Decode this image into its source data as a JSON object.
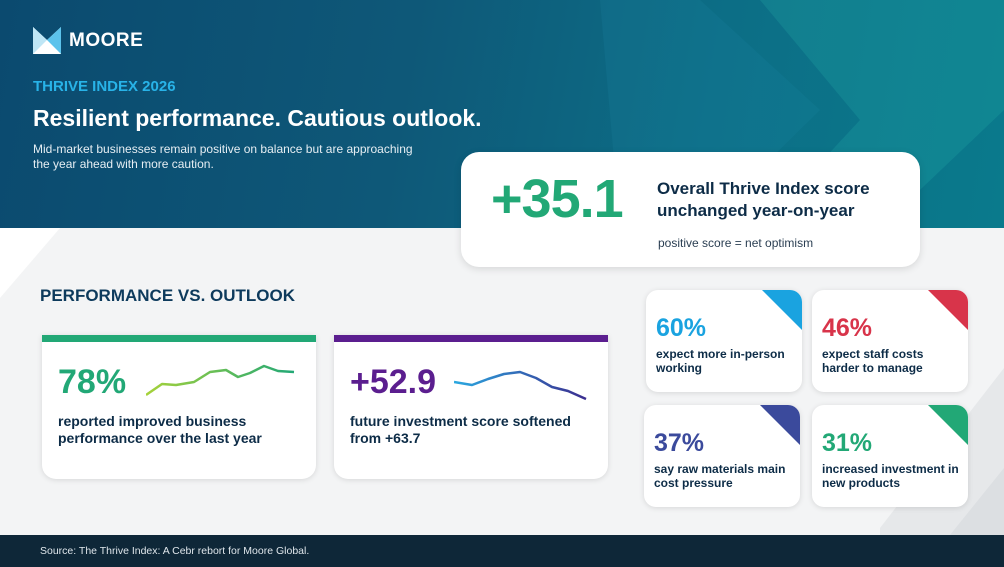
{
  "brand": {
    "name": "MOORE"
  },
  "hero": {
    "eyebrow": "THRIVE INDEX 2026",
    "headline": "Resilient performance. Cautious outlook.",
    "subtext": "Mid-market businesses remain positive on balance but are approaching the year ahead with more caution."
  },
  "score": {
    "value": "+35.1",
    "title": "Overall Thrive Index score unchanged year-on-year",
    "note": "positive score = net optimism"
  },
  "section": {
    "title": "PERFORMANCE VS. OUTLOOK"
  },
  "cards": [
    {
      "value": "78%",
      "text": "reported improved business performance over the last year",
      "color": "#22a876",
      "spark_colors": [
        "#a6d23a",
        "#22a876"
      ]
    },
    {
      "value": "+52.9",
      "text": "future investment score softened from +63.7",
      "color": "#5b1e8f",
      "spark_colors": [
        "#2aa8e0",
        "#3b2d8f"
      ]
    }
  ],
  "stats": [
    {
      "value": "60%",
      "text": "expect more in-person working",
      "color": "#1aa3e0"
    },
    {
      "value": "46%",
      "text": "expect staff costs harder to manage",
      "color": "#d8344a"
    },
    {
      "value": "37%",
      "text": "say raw materials main cost pressure",
      "color": "#3b4a9c"
    },
    {
      "value": "31%",
      "text": "increased investment in new products",
      "color": "#22a876"
    }
  ],
  "footer": {
    "source": "Source: The Thrive Index: A Cebr rebort for Moore Global."
  }
}
